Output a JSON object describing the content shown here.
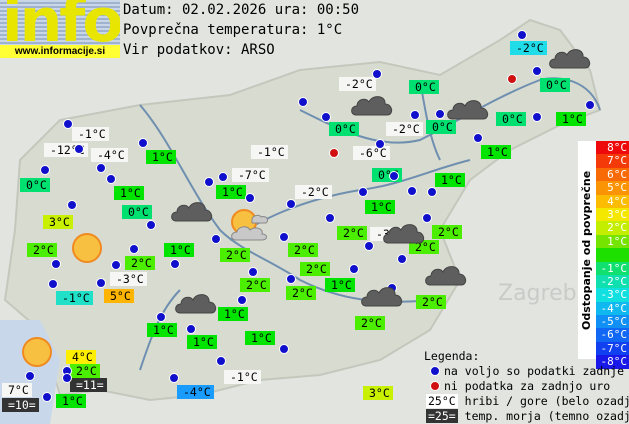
{
  "header": {
    "logo": "info",
    "url": "www.informacije.si",
    "date_line": "Datum: 02.02.2026 ura: 00:50",
    "avg_line": "Povprečna temperatura: 1°C",
    "source_line": "Vir podatkov: ARSO"
  },
  "colors": {
    "white": "#f6f6f4",
    "c0": "#00e070",
    "c1": "#00e400",
    "c2": "#4cee00",
    "c3": "#c8f000",
    "c4": "#ffee00",
    "c5": "#ffb400",
    "cm1": "#20e0c8",
    "cm2": "#20dce8",
    "cm4": "#1a9cff",
    "dark": "#333333",
    "station": "#1010cc",
    "nodata": "#d01010"
  },
  "labels": [
    {
      "text": "-1°C",
      "c": "white"
    },
    {
      "text": "-12°C",
      "c": "white"
    },
    {
      "text": "-4°C",
      "c": "white"
    },
    {
      "text": "1°C",
      "c": "c1"
    },
    {
      "text": "0°C",
      "c": "c0"
    },
    {
      "text": "1°C",
      "c": "c1"
    },
    {
      "text": "0°C",
      "c": "c0"
    },
    {
      "text": "3°C",
      "c": "c3"
    },
    {
      "text": "2°C",
      "c": "c2"
    },
    {
      "text": "2°C",
      "c": "c2"
    },
    {
      "text": "1°C",
      "c": "c1"
    },
    {
      "text": "-1°C",
      "c": "white"
    },
    {
      "text": "-7°C",
      "c": "white"
    },
    {
      "text": "1°C",
      "c": "c1"
    },
    {
      "text": "-2°C",
      "c": "white"
    },
    {
      "text": "2°C",
      "c": "c2"
    },
    {
      "text": "2°C",
      "c": "c2"
    },
    {
      "text": "-2°C",
      "c": "white"
    },
    {
      "text": "0°C",
      "c": "c0"
    },
    {
      "text": "0°C",
      "c": "c0"
    },
    {
      "text": "-2°C",
      "c": "white"
    },
    {
      "text": "0°C",
      "c": "c0"
    },
    {
      "text": "-6°C",
      "c": "white"
    },
    {
      "text": "0°C",
      "c": "c0"
    },
    {
      "text": "1°C",
      "c": "c1"
    },
    {
      "text": "1°C",
      "c": "c1"
    },
    {
      "text": "-2°C",
      "c": "cm2"
    },
    {
      "text": "0°C",
      "c": "c0"
    },
    {
      "text": "0°C",
      "c": "c0"
    },
    {
      "text": "1°C",
      "c": "c1"
    },
    {
      "text": "1°C",
      "c": "c1"
    },
    {
      "text": "2°C",
      "c": "c2"
    },
    {
      "text": "-3°C",
      "c": "white"
    },
    {
      "text": "2°C",
      "c": "c2"
    },
    {
      "text": "2°C",
      "c": "c2"
    },
    {
      "text": "2°C",
      "c": "c2"
    },
    {
      "text": "2°C",
      "c": "c2"
    },
    {
      "text": "1°C",
      "c": "c1"
    },
    {
      "text": "2°C",
      "c": "c2"
    },
    {
      "text": "2°C",
      "c": "c2"
    },
    {
      "text": "-3°C",
      "c": "white"
    },
    {
      "text": "5°C",
      "c": "c5"
    },
    {
      "text": "-1°C",
      "c": "cm1"
    },
    {
      "text": "1°C",
      "c": "c1"
    },
    {
      "text": "1°C",
      "c": "c1"
    },
    {
      "text": "1°C",
      "c": "c1"
    },
    {
      "text": "1°C",
      "c": "c1"
    },
    {
      "text": "-1°C",
      "c": "white"
    },
    {
      "text": "-4°C",
      "c": "cm4"
    },
    {
      "text": "4°C",
      "c": "c4"
    },
    {
      "text": "2°C",
      "c": "c2"
    },
    {
      "text": "=11=",
      "c": "dark"
    },
    {
      "text": "7°C",
      "c": "white"
    },
    {
      "text": "=10=",
      "c": "dark"
    },
    {
      "text": "1°C",
      "c": "c1"
    },
    {
      "text": "3°C",
      "c": "c3"
    },
    {
      "text": "2°C",
      "c": "c2"
    }
  ],
  "scale": {
    "title": "Odstopanje od povprečne temperature:",
    "steps": [
      {
        "text": "8°C",
        "color": "#ee0a0a"
      },
      {
        "text": "7°C",
        "color": "#f43a08"
      },
      {
        "text": "6°C",
        "color": "#f86a06"
      },
      {
        "text": "5°C",
        "color": "#fb9404"
      },
      {
        "text": "4°C",
        "color": "#fcbc02"
      },
      {
        "text": "3°C",
        "color": "#f4e800"
      },
      {
        "text": "2°C",
        "color": "#c4ee00"
      },
      {
        "text": "1°C",
        "color": "#74e400"
      },
      {
        "text": "",
        "color": "#1ee000"
      },
      {
        "text": "-1°C",
        "color": "#10e070"
      },
      {
        "text": "-2°C",
        "color": "#10e0b0"
      },
      {
        "text": "-3°C",
        "color": "#10e0e0"
      },
      {
        "text": "-4°C",
        "color": "#10b8f0"
      },
      {
        "text": "-5°C",
        "color": "#1090f4"
      },
      {
        "text": "-6°C",
        "color": "#1068f4"
      },
      {
        "text": "-7°C",
        "color": "#1040f0"
      },
      {
        "text": "-8°C",
        "color": "#1818e8"
      }
    ]
  },
  "legend": {
    "title": "Legenda:",
    "available": "na voljo so podatki zadnje ure",
    "no_data": "ni podatka za zadnjo uro",
    "mountain_sample": "25°C",
    "mountain": "hribi / gore (belo ozadje)",
    "sea_sample": "=25=",
    "sea": "temp. morja (temno ozadje)"
  },
  "map_labels": {
    "zagreb": "Zagreb"
  }
}
